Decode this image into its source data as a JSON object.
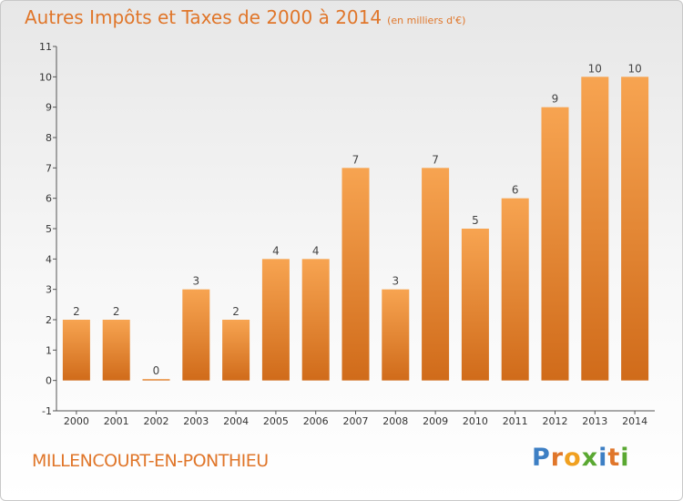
{
  "title": "Autres Impôts et Taxes de 2000 à 2014",
  "unit": "(en milliers d'€)",
  "commune": "MILLENCOURT-EN-PONTHIEU",
  "logo": {
    "text": "Proxiti",
    "letters": [
      {
        "ch": "P",
        "color": "#3d7fc4"
      },
      {
        "ch": "r",
        "color": "#e0762a"
      },
      {
        "ch": "o",
        "color": "#f0a020"
      },
      {
        "ch": "x",
        "color": "#5aa832"
      },
      {
        "ch": "i",
        "color": "#3d7fc4"
      },
      {
        "ch": "t",
        "color": "#e0762a"
      },
      {
        "ch": "i",
        "color": "#5aa832"
      }
    ]
  },
  "colors": {
    "title": "#e0762a",
    "bar_light": "#f7a451",
    "bar_dark": "#d06b1a",
    "axis": "#555555"
  },
  "chart_data": {
    "type": "bar",
    "title": "Autres Impôts et Taxes de 2000 à 2014",
    "subtitle": "(en milliers d'€)",
    "categories": [
      "2000",
      "2001",
      "2002",
      "2003",
      "2004",
      "2005",
      "2006",
      "2007",
      "2008",
      "2009",
      "2010",
      "2011",
      "2012",
      "2013",
      "2014"
    ],
    "values": [
      2,
      2,
      0,
      3,
      2,
      4,
      4,
      7,
      3,
      7,
      5,
      6,
      9,
      10,
      10
    ],
    "data_labels": [
      "2",
      "2",
      "0",
      "3",
      "2",
      "4",
      "4",
      "7",
      "3",
      "7",
      "5",
      "6",
      "9",
      "10",
      "10"
    ],
    "ylim": [
      -1,
      11
    ],
    "yticks": [
      "-1",
      "0",
      "1",
      "2",
      "3",
      "4",
      "5",
      "6",
      "7",
      "8",
      "9",
      "10",
      "11"
    ],
    "grid": false,
    "xlabel": "",
    "ylabel": ""
  }
}
